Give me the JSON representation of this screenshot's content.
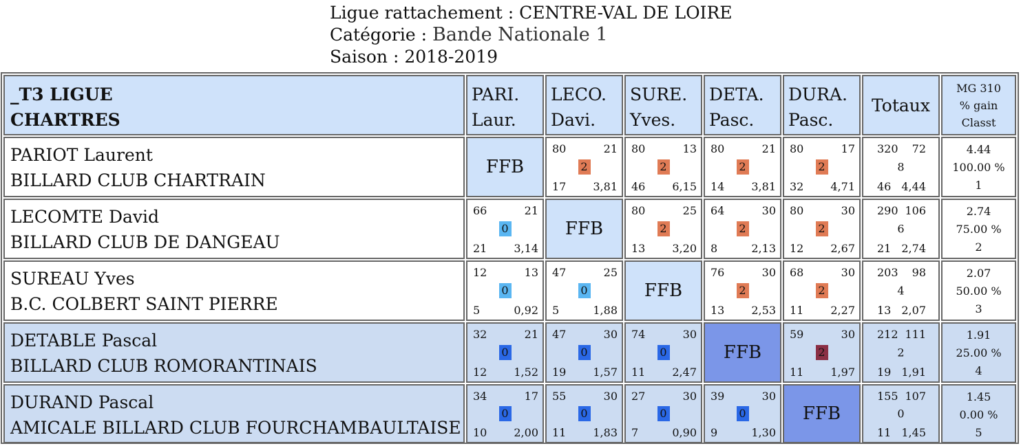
{
  "header": {
    "ligue_label": "Ligue rattachement : ",
    "ligue_value": "CENTRE-VAL DE LOIRE",
    "categorie_label": "Catégorie : ",
    "categorie_value": "Bande Nationale 1",
    "saison_label": "Saison : ",
    "saison_value": "2018-2019"
  },
  "table": {
    "team_line1": "_T3 LIGUE",
    "team_line2": "CHARTRES",
    "columns": [
      {
        "l1": "PARI.",
        "l2": "Laur."
      },
      {
        "l1": "LECO.",
        "l2": "Davi."
      },
      {
        "l1": "SURE.",
        "l2": "Yves."
      },
      {
        "l1": "DETA.",
        "l2": "Pasc."
      },
      {
        "l1": "DURA.",
        "l2": "Pasc."
      }
    ],
    "totaux_label": "Totaux",
    "mg_lines": [
      "MG 310",
      "% gain",
      "Classt"
    ],
    "players": [
      {
        "name": "PARIOT Laurent",
        "club": "BILLARD CLUB CHARTRAIN",
        "matches": [
          {
            "ffb": "FFB"
          },
          {
            "pf": "80",
            "rep": "21",
            "pts": "2",
            "ms": "17",
            "moy": "3,81",
            "color": "#e07b55"
          },
          {
            "pf": "80",
            "rep": "13",
            "pts": "2",
            "ms": "46",
            "moy": "6,15",
            "color": "#e07b55"
          },
          {
            "pf": "80",
            "rep": "21",
            "pts": "2",
            "ms": "14",
            "moy": "3,81",
            "color": "#e07b55"
          },
          {
            "pf": "80",
            "rep": "17",
            "pts": "2",
            "ms": "32",
            "moy": "4,71",
            "color": "#e07b55"
          }
        ],
        "totals": {
          "pf": "320",
          "rep": "72",
          "pts": "8",
          "ms": "46",
          "moy": "4,44"
        },
        "stats": {
          "mg": "4.44",
          "gain": "100.00 %",
          "classt": "1"
        }
      },
      {
        "name": "LECOMTE David",
        "club": "BILLARD CLUB DE DANGEAU",
        "matches": [
          {
            "pf": "66",
            "rep": "21",
            "pts": "0",
            "ms": "21",
            "moy": "3,14",
            "color": "#5ab6f2"
          },
          {
            "ffb": "FFB"
          },
          {
            "pf": "80",
            "rep": "25",
            "pts": "2",
            "ms": "13",
            "moy": "3,20",
            "color": "#e07b55"
          },
          {
            "pf": "64",
            "rep": "30",
            "pts": "2",
            "ms": "8",
            "moy": "2,13",
            "color": "#e07b55"
          },
          {
            "pf": "80",
            "rep": "30",
            "pts": "2",
            "ms": "12",
            "moy": "2,67",
            "color": "#e07b55"
          }
        ],
        "totals": {
          "pf": "290",
          "rep": "106",
          "pts": "6",
          "ms": "21",
          "moy": "2,74"
        },
        "stats": {
          "mg": "2.74",
          "gain": "75.00 %",
          "classt": "2"
        }
      },
      {
        "name": "SUREAU Yves",
        "club": "B.C. COLBERT SAINT PIERRE",
        "matches": [
          {
            "pf": "12",
            "rep": "13",
            "pts": "0",
            "ms": "5",
            "moy": "0,92",
            "color": "#5ab6f2"
          },
          {
            "pf": "47",
            "rep": "25",
            "pts": "0",
            "ms": "5",
            "moy": "1,88",
            "color": "#5ab6f2"
          },
          {
            "ffb": "FFB"
          },
          {
            "pf": "76",
            "rep": "30",
            "pts": "2",
            "ms": "13",
            "moy": "2,53",
            "color": "#e07b55"
          },
          {
            "pf": "68",
            "rep": "30",
            "pts": "2",
            "ms": "11",
            "moy": "2,27",
            "color": "#e07b55"
          }
        ],
        "totals": {
          "pf": "203",
          "rep": "98",
          "pts": "4",
          "ms": "13",
          "moy": "2,07"
        },
        "stats": {
          "mg": "2.07",
          "gain": "50.00 %",
          "classt": "3"
        }
      },
      {
        "name": "DETABLE Pascal",
        "club": "BILLARD CLUB ROMORANTINAIS",
        "matches": [
          {
            "pf": "32",
            "rep": "21",
            "pts": "0",
            "ms": "12",
            "moy": "1,52",
            "color": "#2a68e6"
          },
          {
            "pf": "47",
            "rep": "30",
            "pts": "0",
            "ms": "19",
            "moy": "1,57",
            "color": "#2a68e6"
          },
          {
            "pf": "74",
            "rep": "30",
            "pts": "0",
            "ms": "11",
            "moy": "2,47",
            "color": "#2a68e6"
          },
          {
            "ffb": "FFB"
          },
          {
            "pf": "59",
            "rep": "30",
            "pts": "2",
            "ms": "11",
            "moy": "1,97",
            "color": "#8b2f45"
          }
        ],
        "totals": {
          "pf": "212",
          "rep": "111",
          "pts": "2",
          "ms": "19",
          "moy": "1,91"
        },
        "stats": {
          "mg": "1.91",
          "gain": "25.00 %",
          "classt": "4"
        }
      },
      {
        "name": "DURAND Pascal",
        "club": "AMICALE BILLARD CLUB FOURCHAMBAULTAISE",
        "matches": [
          {
            "pf": "34",
            "rep": "17",
            "pts": "0",
            "ms": "10",
            "moy": "2,00",
            "color": "#2a68e6"
          },
          {
            "pf": "55",
            "rep": "30",
            "pts": "0",
            "ms": "11",
            "moy": "1,83",
            "color": "#2a68e6"
          },
          {
            "pf": "27",
            "rep": "30",
            "pts": "0",
            "ms": "7",
            "moy": "0,90",
            "color": "#2a68e6"
          },
          {
            "pf": "39",
            "rep": "30",
            "pts": "0",
            "ms": "9",
            "moy": "1,30",
            "color": "#2a68e6"
          },
          {
            "ffb": "FFB"
          }
        ],
        "totals": {
          "pf": "155",
          "rep": "107",
          "pts": "0",
          "ms": "11",
          "moy": "1,45"
        },
        "stats": {
          "mg": "1.45",
          "gain": "0.00 %",
          "classt": "5"
        }
      }
    ]
  }
}
